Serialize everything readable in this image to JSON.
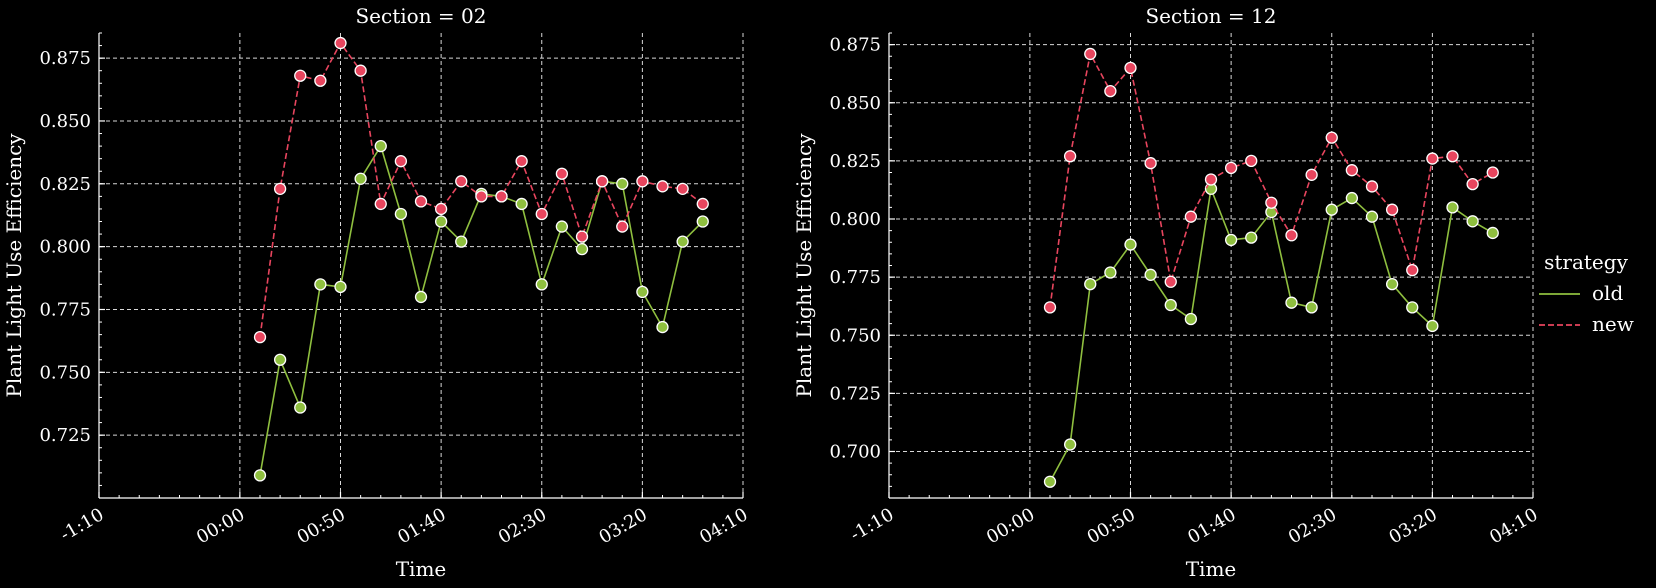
{
  "chart_data": [
    {
      "type": "line",
      "title": "Section = 02",
      "xlabel": "Time",
      "ylabel": "Plant Light Use Efficiency",
      "xlim": [
        "-1:10",
        "04:10"
      ],
      "ylim": [
        0.7,
        0.885
      ],
      "x_ticks": [
        "-1:10",
        "00:00",
        "00:50",
        "01:40",
        "02:30",
        "03:20",
        "04:10"
      ],
      "y_ticks": [
        "0.725",
        "0.750",
        "0.775",
        "0.800",
        "0.825",
        "0.850",
        "0.875"
      ],
      "grid": true,
      "x": [
        "00:10",
        "00:20",
        "00:30",
        "00:40",
        "00:50",
        "01:00",
        "01:10",
        "01:20",
        "01:30",
        "01:40",
        "01:50",
        "02:00",
        "02:10",
        "02:20",
        "02:30",
        "02:40",
        "02:50",
        "03:00",
        "03:10",
        "03:20",
        "03:30",
        "03:40",
        "03:50",
        "04:00"
      ],
      "series": [
        {
          "name": "old",
          "color": "#8fbf3f",
          "values": [
            0.709,
            0.755,
            0.736,
            0.785,
            0.784,
            0.827,
            0.84,
            0.813,
            0.78,
            0.81,
            0.802,
            0.821,
            0.82,
            0.817,
            0.785,
            0.808,
            0.799,
            0.826,
            0.825,
            0.782,
            0.768,
            0.802,
            0.81,
            null
          ]
        },
        {
          "name": "new",
          "color": "#e8455e",
          "dashed": true,
          "values": [
            0.764,
            0.823,
            0.868,
            0.866,
            0.881,
            0.87,
            0.817,
            0.834,
            0.818,
            0.815,
            0.826,
            0.82,
            0.82,
            0.834,
            0.813,
            0.829,
            0.804,
            0.826,
            0.808,
            0.826,
            0.824,
            0.823,
            0.817,
            null
          ]
        }
      ]
    },
    {
      "type": "line",
      "title": "Section = 12",
      "xlabel": "Time",
      "ylabel": "Plant Light Use Efficiency",
      "xlim": [
        "-1:10",
        "04:10"
      ],
      "ylim": [
        0.68,
        0.88
      ],
      "x_ticks": [
        "-1:10",
        "00:00",
        "00:50",
        "01:40",
        "02:30",
        "03:20",
        "04:10"
      ],
      "y_ticks": [
        "0.700",
        "0.725",
        "0.750",
        "0.775",
        "0.800",
        "0.825",
        "0.850",
        "0.875"
      ],
      "grid": true,
      "x": [
        "00:10",
        "00:20",
        "00:30",
        "00:40",
        "00:50",
        "01:00",
        "01:10",
        "01:20",
        "01:30",
        "01:40",
        "01:50",
        "02:00",
        "02:10",
        "02:20",
        "02:30",
        "02:40",
        "02:50",
        "03:00",
        "03:10",
        "03:20",
        "03:30",
        "03:40",
        "03:50"
      ],
      "series": [
        {
          "name": "old",
          "color": "#8fbf3f",
          "values": [
            0.687,
            0.703,
            0.772,
            0.777,
            0.789,
            0.776,
            0.763,
            0.757,
            0.813,
            0.791,
            0.792,
            0.803,
            0.764,
            0.762,
            0.804,
            0.809,
            0.801,
            0.772,
            0.762,
            0.754,
            0.805,
            0.799,
            0.794
          ]
        },
        {
          "name": "new",
          "color": "#e8455e",
          "dashed": true,
          "values": [
            0.762,
            0.827,
            0.871,
            0.855,
            0.865,
            0.824,
            0.773,
            0.801,
            0.817,
            0.822,
            0.825,
            0.807,
            0.793,
            0.819,
            0.835,
            0.821,
            0.814,
            0.804,
            0.778,
            0.826,
            0.827,
            0.815,
            0.82
          ]
        }
      ]
    }
  ],
  "legend": {
    "title": "strategy",
    "placement": "right",
    "items": [
      {
        "label": "old",
        "color": "#8fbf3f",
        "dashed": false
      },
      {
        "label": "new",
        "color": "#e8455e",
        "dashed": true
      }
    ]
  }
}
